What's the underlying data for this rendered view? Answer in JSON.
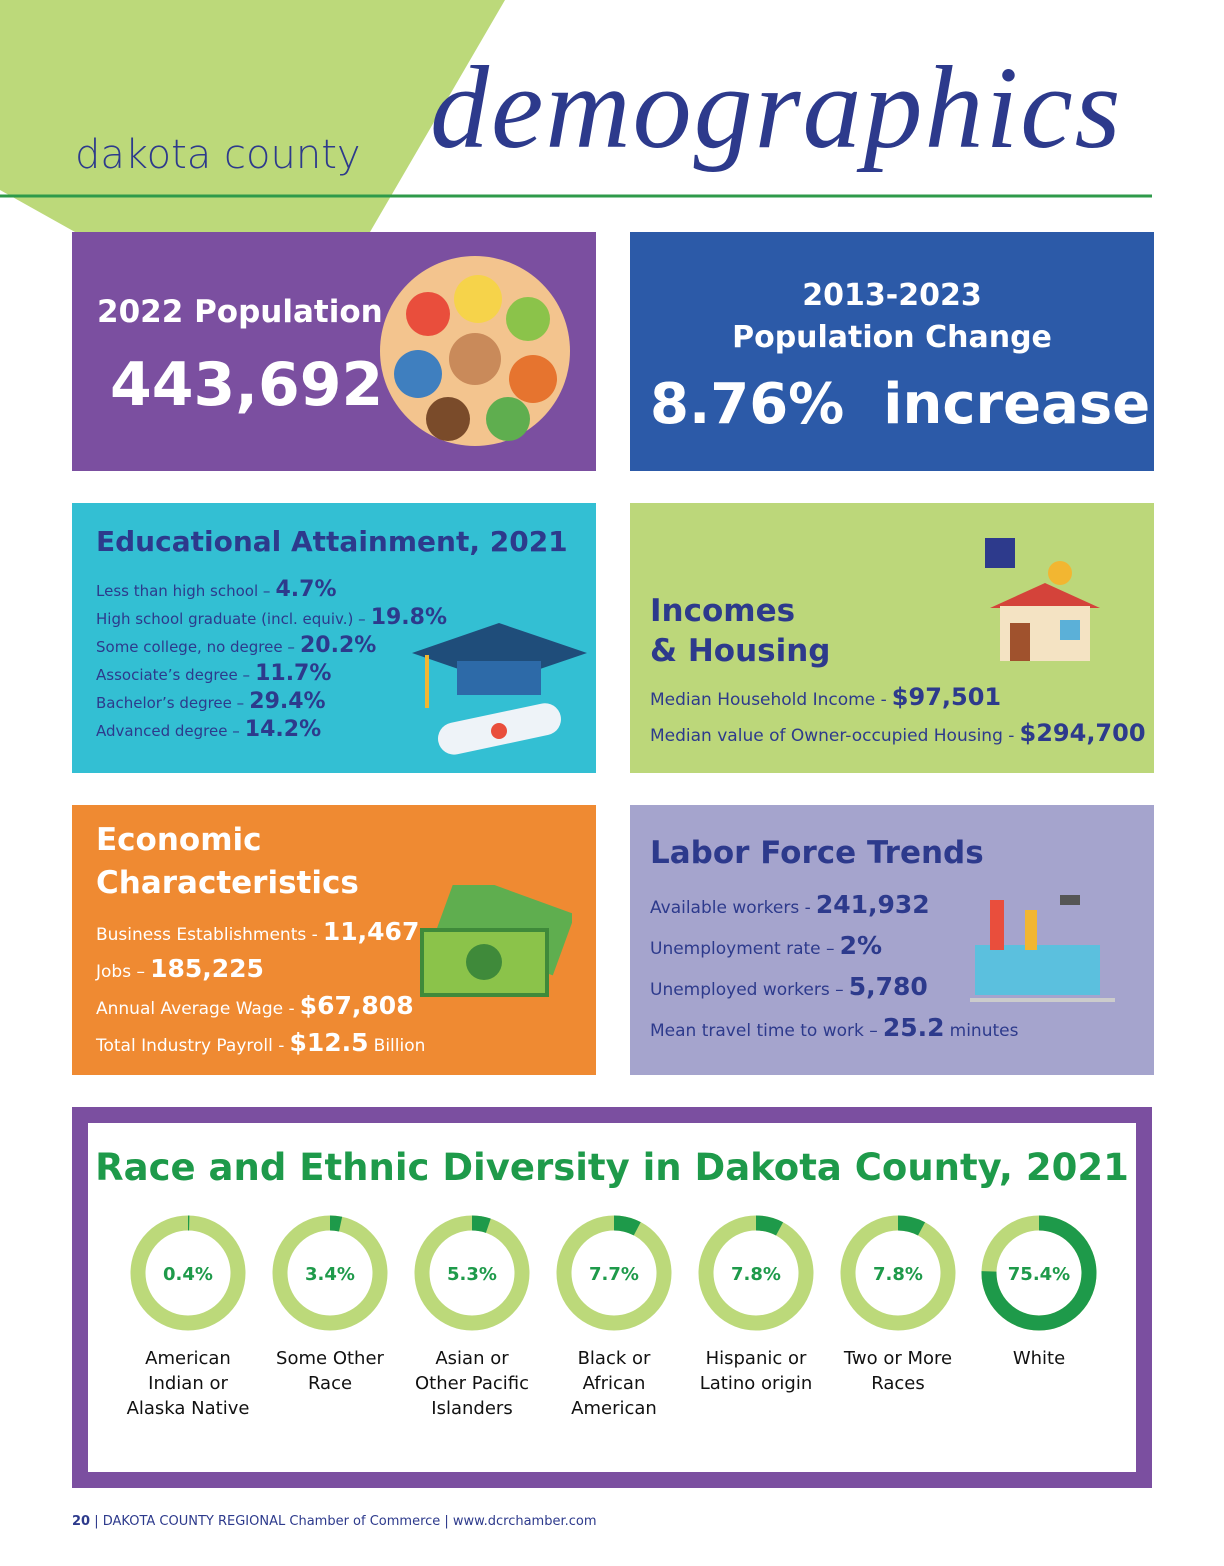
{
  "header": {
    "prefix": "dakota county",
    "title": "demographics"
  },
  "population": {
    "title": "2022 Population",
    "value": "443,692"
  },
  "change": {
    "period": "2013-2023",
    "title": "Population Change",
    "value": "8.76%",
    "direction": "increase"
  },
  "education": {
    "title": "Educational Attainment, 2021",
    "items": [
      {
        "label": "Less than high school –",
        "value": "4.7%"
      },
      {
        "label": "High school graduate (incl. equiv.) –",
        "value": "19.8%"
      },
      {
        "label": "Some college, no degree –",
        "value": "20.2%"
      },
      {
        "label": "Associate’s degree –",
        "value": "11.7%"
      },
      {
        "label": "Bachelor’s degree –",
        "value": "29.4%"
      },
      {
        "label": "Advanced degree –",
        "value": "14.2%"
      }
    ]
  },
  "incomes": {
    "title_lines": [
      "Incomes",
      "& Housing"
    ],
    "items": [
      {
        "label": "Median Household Income -",
        "value": "$97,501"
      },
      {
        "label": "Median value of Owner-occupied Housing -",
        "value": "$294,700"
      }
    ]
  },
  "economic": {
    "title_lines": [
      "Economic",
      "Characteristics"
    ],
    "items": [
      {
        "label": "Business Establishments -",
        "value": "11,467"
      },
      {
        "label": "Jobs –",
        "value": "185,225"
      },
      {
        "label": "Annual Average Wage -",
        "value": "$67,808"
      },
      {
        "label": "Total Industry Payroll -",
        "value": "$12.5",
        "suffix": "Billion"
      }
    ]
  },
  "labor": {
    "title": "Labor Force Trends",
    "items": [
      {
        "label": "Available workers -",
        "value": "241,932"
      },
      {
        "label": "Unemployment rate –",
        "value": "2%"
      },
      {
        "label": "Unemployed workers –",
        "value": "5,780"
      },
      {
        "label": "Mean travel time to work –",
        "value": "25.2",
        "suffix": "minutes"
      }
    ]
  },
  "race": {
    "title": "Race and Ethnic Diversity in Dakota County, 2021",
    "items": [
      {
        "value": 0.4,
        "value_label": "0.4%",
        "label": "American Indian or Alaska Native"
      },
      {
        "value": 3.4,
        "value_label": "3.4%",
        "label": "Some Other Race"
      },
      {
        "value": 5.3,
        "value_label": "5.3%",
        "label": "Asian or Other Pacific Islanders"
      },
      {
        "value": 7.7,
        "value_label": "7.7%",
        "label": "Black or African American"
      },
      {
        "value": 7.8,
        "value_label": "7.8%",
        "label": "Hispanic or Latino origin"
      },
      {
        "value": 7.8,
        "value_label": "7.8%",
        "label": "Two or More Races"
      },
      {
        "value": 75.4,
        "value_label": "75.4%",
        "label": "White"
      }
    ]
  },
  "footer": {
    "page": "20",
    "text": "DAKOTA COUNTY REGIONAL Chamber of Commerce | www.dcrchamber.com"
  }
}
